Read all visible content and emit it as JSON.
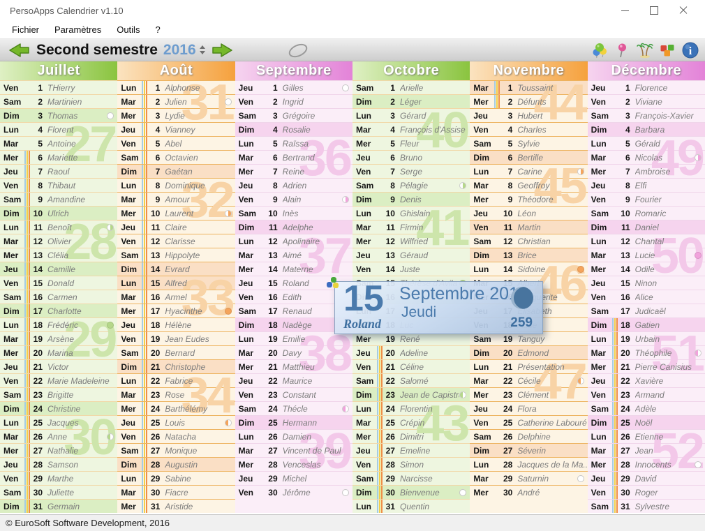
{
  "window": {
    "title": "PersoApps Calendrier v1.10"
  },
  "menu": {
    "items": [
      "Fichier",
      "Paramètres",
      "Outils",
      "?"
    ]
  },
  "toolbar": {
    "period_label": "Second semestre",
    "year": "2016",
    "icons": [
      "balloons-icon",
      "pushpin-icon",
      "palm-trees-icon",
      "cubes-icon",
      "info-icon"
    ]
  },
  "tooltip": {
    "day": "15",
    "month_year": "Septembre 2016",
    "weekday": "Jeudi",
    "saint": "Roland",
    "day_of_year": "259",
    "moon": "waxing-gibbous",
    "accent_color": "#4a7aac"
  },
  "statusbar": {
    "text": "© EuroSoft Software Development, 2016"
  },
  "themes": {
    "green": {
      "header_from": "#dff0c4",
      "header_to": "#8ac43f",
      "row": "#eef6e0",
      "sunday": "#dbeec3",
      "separator": "#f1d8a8",
      "watermark": "#cde5ab",
      "moon": "#b5d78a"
    },
    "orange": {
      "header_from": "#fbe3c0",
      "header_to": "#f5a13d",
      "row": "#fdf4e4",
      "sunday": "#fadfc5",
      "separator": "#edb35f",
      "watermark": "#f8d3a6",
      "moon": "#f4a45c"
    },
    "pink": {
      "header_from": "#f6d4ef",
      "header_to": "#e383d8",
      "row": "#fbeef8",
      "sunday": "#f6d4ee",
      "separator": "#f0d5ea",
      "watermark": "#f3c8e9",
      "moon": "#f1a3dc"
    }
  },
  "stripe_colors": [
    "#a5cde2",
    "#f2d04b",
    "#ef8f47"
  ],
  "months": [
    {
      "name": "Juillet",
      "theme": "green",
      "stripes": [
        6,
        31
      ],
      "holidays": [
        14
      ],
      "weeks": [
        [
          27,
          4
        ],
        [
          28,
          11
        ],
        [
          29,
          18
        ],
        [
          30,
          25
        ]
      ],
      "moons": {
        "3": "new",
        "11": "first",
        "18": "full",
        "26": "last"
      },
      "days": [
        [
          1,
          "Ven",
          "THierry"
        ],
        [
          2,
          "Sam",
          "Martinien"
        ],
        [
          3,
          "Dim",
          "Thomas"
        ],
        [
          4,
          "Lun",
          "Florent"
        ],
        [
          5,
          "Mar",
          "Antoine"
        ],
        [
          6,
          "Mer",
          "Mariette"
        ],
        [
          7,
          "Jeu",
          "Raoul"
        ],
        [
          8,
          "Ven",
          "Thibaut"
        ],
        [
          9,
          "Sam",
          "Amandine"
        ],
        [
          10,
          "Dim",
          "Ulrich"
        ],
        [
          11,
          "Lun",
          "Benoît"
        ],
        [
          12,
          "Mar",
          "Olivier"
        ],
        [
          13,
          "Mer",
          "Clélia"
        ],
        [
          14,
          "Jeu",
          "Camille"
        ],
        [
          15,
          "Ven",
          "Donald"
        ],
        [
          16,
          "Sam",
          "Carmen"
        ],
        [
          17,
          "Dim",
          "Charlotte"
        ],
        [
          18,
          "Lun",
          "Frédéric"
        ],
        [
          19,
          "Mar",
          "Arsène"
        ],
        [
          20,
          "Mer",
          "Marina"
        ],
        [
          21,
          "Jeu",
          "Victor"
        ],
        [
          22,
          "Ven",
          "Marie Madeleine"
        ],
        [
          23,
          "Sam",
          "Brigitte"
        ],
        [
          24,
          "Dim",
          "Christine"
        ],
        [
          25,
          "Lun",
          "Jacques"
        ],
        [
          26,
          "Mar",
          "Anne"
        ],
        [
          27,
          "Mer",
          "Nathalie"
        ],
        [
          28,
          "Jeu",
          "Samson"
        ],
        [
          29,
          "Ven",
          "Marthe"
        ],
        [
          30,
          "Sam",
          "Juliette"
        ],
        [
          31,
          "Dim",
          "Germain"
        ]
      ]
    },
    {
      "name": "Août",
      "theme": "orange",
      "stripes": [
        1,
        31
      ],
      "holidays": [
        15
      ],
      "weeks": [
        [
          31,
          1
        ],
        [
          32,
          8
        ],
        [
          33,
          15
        ],
        [
          34,
          22
        ]
      ],
      "moons": {
        "2": "new",
        "10": "first",
        "17": "full",
        "25": "last"
      },
      "days": [
        [
          1,
          "Lun",
          "Alphonse"
        ],
        [
          2,
          "Mar",
          "Julien"
        ],
        [
          3,
          "Mer",
          "Lydie"
        ],
        [
          4,
          "Jeu",
          "Vianney"
        ],
        [
          5,
          "Ven",
          "Abel"
        ],
        [
          6,
          "Sam",
          "Octavien"
        ],
        [
          7,
          "Dim",
          "Gaétan"
        ],
        [
          8,
          "Lun",
          "Dominique"
        ],
        [
          9,
          "Mar",
          "Amour"
        ],
        [
          10,
          "Mer",
          "Laurent"
        ],
        [
          11,
          "Jeu",
          "Claire"
        ],
        [
          12,
          "Ven",
          "Clarisse"
        ],
        [
          13,
          "Sam",
          "Hippolyte"
        ],
        [
          14,
          "Dim",
          "Evrard"
        ],
        [
          15,
          "Lun",
          "Alfred"
        ],
        [
          16,
          "Mar",
          "Armel"
        ],
        [
          17,
          "Mer",
          "Hyacinthe"
        ],
        [
          18,
          "Jeu",
          "Hélène"
        ],
        [
          19,
          "Ven",
          "Jean Eudes"
        ],
        [
          20,
          "Sam",
          "Bernard"
        ],
        [
          21,
          "Dim",
          "Christophe"
        ],
        [
          22,
          "Lun",
          "Fabrice"
        ],
        [
          23,
          "Mar",
          "Rose"
        ],
        [
          24,
          "Mer",
          "Barthélémy"
        ],
        [
          25,
          "Jeu",
          "Louis"
        ],
        [
          26,
          "Ven",
          "Natacha"
        ],
        [
          27,
          "Sam",
          "Monique"
        ],
        [
          28,
          "Dim",
          "Augustin"
        ],
        [
          29,
          "Lun",
          "Sabine"
        ],
        [
          30,
          "Mar",
          "Fiacre"
        ],
        [
          31,
          "Mer",
          "Aristide"
        ]
      ]
    },
    {
      "name": "Septembre",
      "theme": "pink",
      "stripes": null,
      "holidays": [],
      "cursor_day": 15,
      "weeks": [
        [
          36,
          5
        ],
        [
          37,
          12
        ],
        [
          38,
          19
        ],
        [
          39,
          26
        ]
      ],
      "moons": {
        "1": "new",
        "9": "first",
        "24": "last",
        "30": "new"
      },
      "days": [
        [
          1,
          "Jeu",
          "Gilles"
        ],
        [
          2,
          "Ven",
          "Ingrid"
        ],
        [
          3,
          "Sam",
          "Grégoire"
        ],
        [
          4,
          "Dim",
          "Rosalie"
        ],
        [
          5,
          "Lun",
          "Raïssa"
        ],
        [
          6,
          "Mar",
          "Bertrand"
        ],
        [
          7,
          "Mer",
          "Reine"
        ],
        [
          8,
          "Jeu",
          "Adrien"
        ],
        [
          9,
          "Ven",
          "Alain"
        ],
        [
          10,
          "Sam",
          "Inès"
        ],
        [
          11,
          "Dim",
          "Adelphe"
        ],
        [
          12,
          "Lun",
          "Apolinaire"
        ],
        [
          13,
          "Mar",
          "Aimé"
        ],
        [
          14,
          "Mer",
          "Materne"
        ],
        [
          15,
          "Jeu",
          "Roland"
        ],
        [
          16,
          "Ven",
          "Edith"
        ],
        [
          17,
          "Sam",
          "Renaud"
        ],
        [
          18,
          "Dim",
          "Nadège"
        ],
        [
          19,
          "Lun",
          "Emilie"
        ],
        [
          20,
          "Mar",
          "Davy"
        ],
        [
          21,
          "Mer",
          "Matthieu"
        ],
        [
          22,
          "Jeu",
          "Maurice"
        ],
        [
          23,
          "Ven",
          "Constant"
        ],
        [
          24,
          "Sam",
          "Thécle"
        ],
        [
          25,
          "Dim",
          "Hermann"
        ],
        [
          26,
          "Lun",
          "Damien"
        ],
        [
          27,
          "Mar",
          "Vincent de Paul"
        ],
        [
          28,
          "Mer",
          "Venceslas"
        ],
        [
          29,
          "Jeu",
          "Michel"
        ],
        [
          30,
          "Ven",
          "Jérôme"
        ]
      ]
    },
    {
      "name": "Octobre",
      "theme": "green",
      "stripes": [
        20,
        31
      ],
      "holidays": [],
      "weeks": [
        [
          40,
          3
        ],
        [
          41,
          10
        ],
        [
          43,
          24
        ]
      ],
      "moons": {
        "8": "first",
        "15": "full",
        "23": "last",
        "30": "new"
      },
      "days": [
        [
          1,
          "Sam",
          "Arielle"
        ],
        [
          2,
          "Dim",
          "Léger"
        ],
        [
          3,
          "Lun",
          "Gérard"
        ],
        [
          4,
          "Mar",
          "François d'Assise"
        ],
        [
          5,
          "Mer",
          "Fleur"
        ],
        [
          6,
          "Jeu",
          "Bruno"
        ],
        [
          7,
          "Ven",
          "Serge"
        ],
        [
          8,
          "Sam",
          "Pélagie"
        ],
        [
          9,
          "Dim",
          "Denis"
        ],
        [
          10,
          "Lun",
          "Ghislain"
        ],
        [
          11,
          "Mar",
          "Firmin"
        ],
        [
          12,
          "Mer",
          "Wilfried"
        ],
        [
          13,
          "Jeu",
          "Géraud"
        ],
        [
          14,
          "Ven",
          "Juste"
        ],
        [
          15,
          "Sam",
          "Thérèse d'Avila"
        ],
        [
          16,
          "Dim",
          ""
        ],
        [
          17,
          "Lun",
          ""
        ],
        [
          18,
          "Mar",
          "Luc"
        ],
        [
          19,
          "Mer",
          "René"
        ],
        [
          20,
          "Jeu",
          "Adeline"
        ],
        [
          21,
          "Ven",
          "Céline"
        ],
        [
          22,
          "Sam",
          "Salomé"
        ],
        [
          23,
          "Dim",
          "Jean de Capistran"
        ],
        [
          24,
          "Lun",
          "Florentin"
        ],
        [
          25,
          "Mar",
          "Crépin"
        ],
        [
          26,
          "Mer",
          "Dimitri"
        ],
        [
          27,
          "Jeu",
          "Emeline"
        ],
        [
          28,
          "Ven",
          "Simon"
        ],
        [
          29,
          "Sam",
          "Narcisse"
        ],
        [
          30,
          "Dim",
          "Bienvenue"
        ],
        [
          31,
          "Lun",
          "Quentin"
        ]
      ]
    },
    {
      "name": "Novembre",
      "theme": "orange",
      "stripes": [
        1,
        2
      ],
      "holidays": [
        1,
        11
      ],
      "weeks": [
        [
          44,
          1
        ],
        [
          45,
          7
        ],
        [
          46,
          14
        ],
        [
          47,
          21
        ]
      ],
      "moons": {
        "7": "first",
        "14": "full",
        "22": "last",
        "29": "new"
      },
      "days": [
        [
          1,
          "Mar",
          "Toussaint"
        ],
        [
          2,
          "Mer",
          "Défunts"
        ],
        [
          3,
          "Jeu",
          "Hubert"
        ],
        [
          4,
          "Ven",
          "Charles"
        ],
        [
          5,
          "Sam",
          "Sylvie"
        ],
        [
          6,
          "Dim",
          "Bertille"
        ],
        [
          7,
          "Lun",
          "Carine"
        ],
        [
          8,
          "Mar",
          "Geoffroy"
        ],
        [
          9,
          "Mer",
          "Théodore"
        ],
        [
          10,
          "Jeu",
          "Léon"
        ],
        [
          11,
          "Ven",
          "Martin"
        ],
        [
          12,
          "Sam",
          "Christian"
        ],
        [
          13,
          "Dim",
          "Brice"
        ],
        [
          14,
          "Lun",
          "Sidoine"
        ],
        [
          15,
          "Mar",
          "Albert"
        ],
        [
          16,
          "Mer",
          "Marguerite"
        ],
        [
          17,
          "Jeu",
          "Elisabeth"
        ],
        [
          18,
          "Ven",
          "Aude"
        ],
        [
          19,
          "Sam",
          "Tanguy"
        ],
        [
          20,
          "Dim",
          "Edmond"
        ],
        [
          21,
          "Lun",
          "Présentation"
        ],
        [
          22,
          "Mar",
          "Cécile"
        ],
        [
          23,
          "Mer",
          "Clément"
        ],
        [
          24,
          "Jeu",
          "Flora"
        ],
        [
          25,
          "Ven",
          "Catherine Labouré"
        ],
        [
          26,
          "Sam",
          "Delphine"
        ],
        [
          27,
          "Dim",
          "Séverin"
        ],
        [
          28,
          "Lun",
          "Jacques de la Ma..."
        ],
        [
          29,
          "Mar",
          "Saturnin"
        ],
        [
          30,
          "Mer",
          "André"
        ]
      ]
    },
    {
      "name": "Décembre",
      "theme": "pink",
      "stripes": [
        18,
        31
      ],
      "holidays": [
        25
      ],
      "weeks": [
        [
          49,
          5
        ],
        [
          50,
          12
        ],
        [
          51,
          19
        ],
        [
          52,
          26
        ]
      ],
      "moons": {
        "6": "first",
        "13": "full",
        "20": "last",
        "28": "new"
      },
      "days": [
        [
          1,
          "Jeu",
          "Florence"
        ],
        [
          2,
          "Ven",
          "Viviane"
        ],
        [
          3,
          "Sam",
          "François-Xavier"
        ],
        [
          4,
          "Dim",
          "Barbara"
        ],
        [
          5,
          "Lun",
          "Gérald"
        ],
        [
          6,
          "Mar",
          "Nicolas"
        ],
        [
          7,
          "Mer",
          "Ambroise"
        ],
        [
          8,
          "Jeu",
          "Elfi"
        ],
        [
          9,
          "Ven",
          "Fourier"
        ],
        [
          10,
          "Sam",
          "Romaric"
        ],
        [
          11,
          "Dim",
          "Daniel"
        ],
        [
          12,
          "Lun",
          "Chantal"
        ],
        [
          13,
          "Mar",
          "Lucie"
        ],
        [
          14,
          "Mer",
          "Odile"
        ],
        [
          15,
          "Jeu",
          "Ninon"
        ],
        [
          16,
          "Ven",
          "Alice"
        ],
        [
          17,
          "Sam",
          "Judicaël"
        ],
        [
          18,
          "Dim",
          "Gatien"
        ],
        [
          19,
          "Lun",
          "Urbain"
        ],
        [
          20,
          "Mar",
          "Théophile"
        ],
        [
          21,
          "Mer",
          "Pierre Canisius"
        ],
        [
          22,
          "Jeu",
          "Xavière"
        ],
        [
          23,
          "Ven",
          "Armand"
        ],
        [
          24,
          "Sam",
          "Adèle"
        ],
        [
          25,
          "Dim",
          "Noël"
        ],
        [
          26,
          "Lun",
          "Etienne"
        ],
        [
          27,
          "Mar",
          "Jean"
        ],
        [
          28,
          "Mer",
          "Innocents"
        ],
        [
          29,
          "Jeu",
          "David"
        ],
        [
          30,
          "Ven",
          "Roger"
        ],
        [
          31,
          "Sam",
          "Sylvestre"
        ]
      ]
    }
  ]
}
